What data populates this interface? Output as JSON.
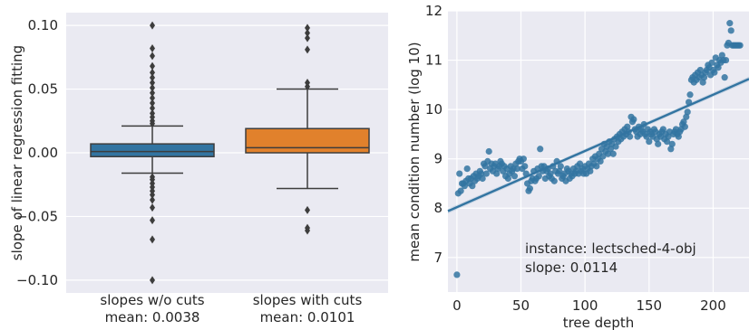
{
  "chart_data": [
    {
      "type": "box",
      "ylabel": "slope of linear regression fitting",
      "ylim": [
        -0.11,
        0.11
      ],
      "yticks": [
        0.1,
        0.05,
        0.0,
        -0.05,
        -0.1
      ],
      "ytick_labels": [
        "0.10",
        "0.05",
        "0.00",
        "−0.05",
        "−0.10"
      ],
      "grid": true,
      "series": [
        {
          "label_line1": "slopes w/o cuts",
          "label_line2": "mean: 0.0038",
          "color": "#3274a1",
          "q1": -0.003,
          "median": 0.001,
          "q3": 0.007,
          "whisker_low": -0.016,
          "whisker_high": 0.021,
          "outliers": [
            0.1,
            0.082,
            0.076,
            0.068,
            0.063,
            0.059,
            0.055,
            0.051,
            0.047,
            0.043,
            0.039,
            0.035,
            0.031,
            0.028,
            0.025,
            0.023,
            -0.019,
            -0.021,
            -0.024,
            -0.027,
            -0.03,
            -0.033,
            -0.037,
            -0.043,
            -0.053,
            -0.068,
            -0.1
          ]
        },
        {
          "label_line1": "slopes with cuts",
          "label_line2": "mean: 0.0101",
          "color": "#e1812c",
          "q1": 0.0,
          "median": 0.004,
          "q3": 0.019,
          "whisker_low": -0.028,
          "whisker_high": 0.05,
          "outliers": [
            0.098,
            0.094,
            0.09,
            0.081,
            0.055,
            0.052,
            -0.045,
            -0.059,
            -0.061
          ]
        }
      ]
    },
    {
      "type": "scatter",
      "xlabel": "tree depth",
      "ylabel": "mean condition number (log 10)",
      "xlim": [
        -7,
        228
      ],
      "ylim": [
        6.3,
        12.0
      ],
      "xticks": [
        0,
        50,
        100,
        150,
        200
      ],
      "yticks": [
        7,
        8,
        9,
        10,
        11,
        12
      ],
      "color": "#3274a1",
      "annotation_line1": "instance: lectsched-4-obj",
      "annotation_line2": "slope: 0.0114",
      "regression": {
        "slope": 0.0114,
        "intercept": 8.02
      },
      "points": [
        [
          0,
          6.65
        ],
        [
          1,
          8.3
        ],
        [
          2,
          8.7
        ],
        [
          3,
          8.35
        ],
        [
          4,
          8.5
        ],
        [
          5,
          8.5
        ],
        [
          6,
          8.45
        ],
        [
          7,
          8.55
        ],
        [
          8,
          8.8
        ],
        [
          9,
          8.6
        ],
        [
          10,
          8.5
        ],
        [
          11,
          8.6
        ],
        [
          12,
          8.45
        ],
        [
          13,
          8.65
        ],
        [
          14,
          8.55
        ],
        [
          15,
          8.7
        ],
        [
          16,
          8.6
        ],
        [
          17,
          8.65
        ],
        [
          18,
          8.75
        ],
        [
          19,
          8.7
        ],
        [
          20,
          8.6
        ],
        [
          21,
          8.9
        ],
        [
          22,
          8.85
        ],
        [
          23,
          8.7
        ],
        [
          24,
          8.95
        ],
        [
          25,
          9.15
        ],
        [
          26,
          8.8
        ],
        [
          27,
          8.9
        ],
        [
          28,
          8.75
        ],
        [
          29,
          8.85
        ],
        [
          30,
          8.9
        ],
        [
          31,
          8.7
        ],
        [
          32,
          8.8
        ],
        [
          33,
          8.85
        ],
        [
          34,
          8.95
        ],
        [
          35,
          8.9
        ],
        [
          36,
          8.75
        ],
        [
          37,
          8.85
        ],
        [
          38,
          8.65
        ],
        [
          39,
          8.8
        ],
        [
          40,
          8.6
        ],
        [
          41,
          8.7
        ],
        [
          42,
          8.85
        ],
        [
          43,
          8.75
        ],
        [
          44,
          8.8
        ],
        [
          45,
          8.65
        ],
        [
          46,
          8.9
        ],
        [
          47,
          8.8
        ],
        [
          48,
          8.95
        ],
        [
          49,
          9.0
        ],
        [
          50,
          8.95
        ],
        [
          51,
          8.8
        ],
        [
          52,
          9.0
        ],
        [
          53,
          8.85
        ],
        [
          54,
          8.7
        ],
        [
          55,
          8.5
        ],
        [
          56,
          8.35
        ],
        [
          57,
          8.4
        ],
        [
          58,
          8.55
        ],
        [
          59,
          8.6
        ],
        [
          60,
          8.75
        ],
        [
          61,
          8.55
        ],
        [
          62,
          8.6
        ],
        [
          63,
          8.8
        ],
        [
          64,
          8.65
        ],
        [
          65,
          9.2
        ],
        [
          66,
          8.85
        ],
        [
          67,
          8.75
        ],
        [
          68,
          8.85
        ],
        [
          69,
          8.6
        ],
        [
          70,
          8.75
        ],
        [
          71,
          8.8
        ],
        [
          72,
          8.65
        ],
        [
          73,
          8.7
        ],
        [
          74,
          8.6
        ],
        [
          75,
          8.85
        ],
        [
          76,
          8.55
        ],
        [
          77,
          8.75
        ],
        [
          78,
          8.95
        ],
        [
          79,
          8.7
        ],
        [
          80,
          8.75
        ],
        [
          81,
          8.85
        ],
        [
          82,
          8.6
        ],
        [
          83,
          8.65
        ],
        [
          84,
          8.7
        ],
        [
          85,
          8.55
        ],
        [
          86,
          8.8
        ],
        [
          87,
          8.75
        ],
        [
          88,
          8.6
        ],
        [
          89,
          8.7
        ],
        [
          90,
          8.65
        ],
        [
          91,
          8.8
        ],
        [
          92,
          8.7
        ],
        [
          93,
          8.75
        ],
        [
          94,
          8.85
        ],
        [
          95,
          8.7
        ],
        [
          96,
          8.9
        ],
        [
          97,
          8.75
        ],
        [
          98,
          8.8
        ],
        [
          99,
          8.7
        ],
        [
          100,
          8.85
        ],
        [
          101,
          8.7
        ],
        [
          102,
          8.8
        ],
        [
          103,
          8.9
        ],
        [
          104,
          8.75
        ],
        [
          105,
          8.85
        ],
        [
          106,
          9.0
        ],
        [
          107,
          8.9
        ],
        [
          108,
          9.05
        ],
        [
          109,
          8.85
        ],
        [
          110,
          9.0
        ],
        [
          111,
          9.1
        ],
        [
          112,
          8.95
        ],
        [
          113,
          9.2
        ],
        [
          114,
          9.05
        ],
        [
          115,
          9.3
        ],
        [
          116,
          9.15
        ],
        [
          117,
          9.25
        ],
        [
          118,
          9.1
        ],
        [
          119,
          9.35
        ],
        [
          120,
          9.2
        ],
        [
          121,
          9.3
        ],
        [
          122,
          9.1
        ],
        [
          123,
          9.4
        ],
        [
          124,
          9.25
        ],
        [
          125,
          9.45
        ],
        [
          126,
          9.35
        ],
        [
          127,
          9.5
        ],
        [
          128,
          9.4
        ],
        [
          129,
          9.55
        ],
        [
          130,
          9.45
        ],
        [
          131,
          9.6
        ],
        [
          132,
          9.5
        ],
        [
          133,
          9.65
        ],
        [
          134,
          9.55
        ],
        [
          135,
          9.45
        ],
        [
          136,
          9.85
        ],
        [
          137,
          9.75
        ],
        [
          138,
          9.8
        ],
        [
          139,
          9.6
        ],
        [
          140,
          9.55
        ],
        [
          141,
          9.45
        ],
        [
          142,
          9.65
        ],
        [
          143,
          9.5
        ],
        [
          144,
          9.6
        ],
        [
          145,
          9.55
        ],
        [
          146,
          9.7
        ],
        [
          147,
          9.5
        ],
        [
          148,
          9.45
        ],
        [
          149,
          9.6
        ],
        [
          150,
          9.35
        ],
        [
          151,
          9.55
        ],
        [
          152,
          9.5
        ],
        [
          153,
          9.45
        ],
        [
          154,
          9.6
        ],
        [
          155,
          9.55
        ],
        [
          156,
          9.4
        ],
        [
          157,
          9.3
        ],
        [
          158,
          9.5
        ],
        [
          159,
          9.45
        ],
        [
          160,
          9.55
        ],
        [
          161,
          9.6
        ],
        [
          162,
          9.4
        ],
        [
          163,
          9.5
        ],
        [
          164,
          9.35
        ],
        [
          165,
          9.45
        ],
        [
          166,
          9.55
        ],
        [
          167,
          9.2
        ],
        [
          168,
          9.3
        ],
        [
          169,
          9.5
        ],
        [
          170,
          9.55
        ],
        [
          171,
          9.6
        ],
        [
          172,
          9.5
        ],
        [
          173,
          9.45
        ],
        [
          174,
          9.55
        ],
        [
          175,
          9.6
        ],
        [
          176,
          9.7
        ],
        [
          177,
          9.75
        ],
        [
          178,
          9.65
        ],
        [
          179,
          9.85
        ],
        [
          180,
          9.95
        ],
        [
          181,
          10.15
        ],
        [
          182,
          10.3
        ],
        [
          183,
          10.6
        ],
        [
          184,
          10.65
        ],
        [
          185,
          10.55
        ],
        [
          186,
          10.7
        ],
        [
          187,
          10.6
        ],
        [
          188,
          10.75
        ],
        [
          189,
          10.65
        ],
        [
          190,
          10.8
        ],
        [
          191,
          10.7
        ],
        [
          192,
          10.55
        ],
        [
          193,
          10.65
        ],
        [
          194,
          10.75
        ],
        [
          195,
          10.8
        ],
        [
          196,
          10.9
        ],
        [
          197,
          10.85
        ],
        [
          198,
          10.7
        ],
        [
          199,
          10.95
        ],
        [
          200,
          10.8
        ],
        [
          201,
          10.75
        ],
        [
          202,
          11.05
        ],
        [
          203,
          10.9
        ],
        [
          204,
          10.85
        ],
        [
          205,
          11.0
        ],
        [
          206,
          10.95
        ],
        [
          207,
          11.1
        ],
        [
          208,
          11.0
        ],
        [
          209,
          10.65
        ],
        [
          210,
          11.0
        ],
        [
          211,
          11.3
        ],
        [
          212,
          11.35
        ],
        [
          213,
          11.75
        ],
        [
          214,
          11.6
        ],
        [
          215,
          11.3
        ],
        [
          216,
          11.3
        ],
        [
          217,
          11.3
        ],
        [
          218,
          11.3
        ],
        [
          219,
          11.3
        ],
        [
          220,
          11.3
        ],
        [
          221,
          11.3
        ]
      ]
    }
  ]
}
